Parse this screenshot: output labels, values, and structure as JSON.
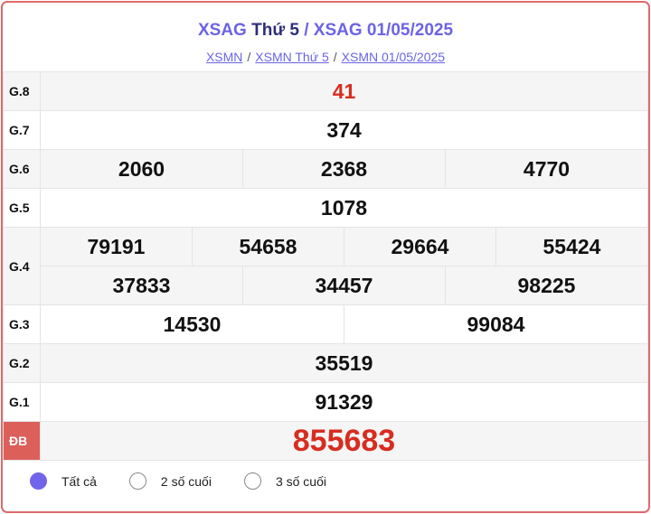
{
  "header": {
    "title_a": "XSAG",
    "title_b": "Thứ 5",
    "title_sep": " / ",
    "title_c": "XSAG 01/05/2025",
    "breadcrumb": [
      "XSMN",
      "XSMN Thứ 5",
      "XSMN 01/05/2025"
    ],
    "breadcrumb_sep": "/"
  },
  "prizes": [
    {
      "label": "G.8",
      "numbers": [
        "41"
      ]
    },
    {
      "label": "G.7",
      "numbers": [
        "374"
      ]
    },
    {
      "label": "G.6",
      "numbers": [
        "2060",
        "2368",
        "4770"
      ]
    },
    {
      "label": "G.5",
      "numbers": [
        "1078"
      ]
    },
    {
      "label": "G.4",
      "numbers": [
        "79191",
        "54658",
        "29664",
        "55424",
        "37833",
        "34457",
        "98225"
      ]
    },
    {
      "label": "G.3",
      "numbers": [
        "14530",
        "99084"
      ]
    },
    {
      "label": "G.2",
      "numbers": [
        "35519"
      ]
    },
    {
      "label": "G.1",
      "numbers": [
        "91329"
      ]
    },
    {
      "label": "ĐB",
      "numbers": [
        "855683"
      ]
    }
  ],
  "filters": [
    {
      "label": "Tất cả",
      "selected": true
    },
    {
      "label": "2 số cuối",
      "selected": false
    },
    {
      "label": "3 số cuối",
      "selected": false
    }
  ],
  "colors": {
    "accent": "#6c63e6",
    "prize_red": "#d72d21",
    "border": "#e06a6a"
  }
}
